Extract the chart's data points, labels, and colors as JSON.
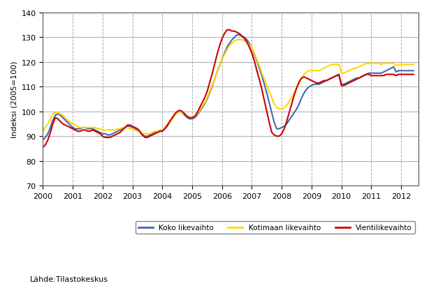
{
  "ylabel": "Indeksi (2005=100)",
  "source_text": "Lähde:Tilastokeskus",
  "ylim": [
    70,
    140
  ],
  "yticks": [
    70,
    80,
    90,
    100,
    110,
    120,
    130,
    140
  ],
  "xlim_start": 2000.0,
  "xlim_end": 2012.583,
  "xtick_labels": [
    "2000",
    "2001",
    "2002",
    "2003",
    "2004",
    "2005",
    "2006",
    "2007",
    "2008",
    "2009",
    "2010",
    "2011",
    "2012"
  ],
  "xtick_positions": [
    2000,
    2001,
    2002,
    2003,
    2004,
    2005,
    2006,
    2007,
    2008,
    2009,
    2010,
    2011,
    2012
  ],
  "color_koko": "#4169B0",
  "color_kotimaan": "#FFD700",
  "color_vienti": "#CC0000",
  "legend_labels": [
    "Koko likevaihto",
    "Kotimaan likevaihto",
    "Vientilikevaihto"
  ],
  "background_color": "#ffffff",
  "grid_color": "#aaaaaa",
  "koko": [
    88.5,
    89.5,
    91.0,
    93.5,
    96.5,
    98.5,
    99.0,
    98.5,
    97.5,
    96.5,
    95.5,
    94.5,
    93.5,
    93.0,
    93.0,
    93.0,
    93.5,
    93.5,
    93.0,
    93.0,
    93.0,
    92.5,
    92.0,
    91.5,
    91.0,
    91.0,
    90.5,
    90.5,
    91.0,
    91.5,
    92.0,
    92.5,
    93.0,
    93.5,
    94.0,
    94.0,
    93.5,
    93.0,
    92.5,
    91.5,
    90.5,
    90.0,
    90.0,
    90.5,
    91.0,
    91.5,
    91.5,
    92.0,
    92.0,
    93.0,
    94.0,
    95.5,
    97.0,
    98.5,
    99.5,
    100.0,
    99.5,
    98.5,
    97.5,
    97.0,
    97.0,
    97.5,
    98.5,
    100.0,
    101.5,
    103.0,
    105.0,
    107.5,
    110.0,
    113.0,
    116.0,
    118.5,
    121.0,
    123.5,
    126.0,
    127.5,
    129.0,
    130.0,
    131.0,
    131.0,
    130.5,
    130.0,
    129.0,
    127.5,
    125.5,
    123.0,
    120.5,
    117.5,
    114.5,
    111.0,
    107.5,
    103.5,
    99.5,
    95.5,
    93.0,
    93.0,
    93.5,
    94.0,
    95.0,
    96.5,
    98.0,
    99.5,
    101.0,
    103.0,
    105.5,
    107.5,
    109.0,
    110.0,
    110.5,
    111.0,
    111.0,
    111.0,
    111.5,
    112.0,
    112.5,
    113.0,
    113.5,
    114.0,
    114.5,
    114.5,
    111.0,
    111.0,
    111.5,
    112.0,
    112.5,
    113.0,
    113.5,
    113.5,
    114.0,
    114.5,
    115.0,
    115.5,
    115.5,
    115.5,
    115.5,
    115.5,
    115.5,
    116.0,
    116.5,
    117.0,
    117.5,
    118.0,
    116.0,
    116.5,
    116.5,
    116.5,
    116.5,
    116.5,
    116.5,
    116.5
  ],
  "kotimaan": [
    92.0,
    93.5,
    95.0,
    97.0,
    99.0,
    99.5,
    99.5,
    99.0,
    98.5,
    97.5,
    96.5,
    95.5,
    95.0,
    94.5,
    94.0,
    93.5,
    93.5,
    93.5,
    93.5,
    93.5,
    93.5,
    93.5,
    93.0,
    93.0,
    92.5,
    92.5,
    92.5,
    92.5,
    92.5,
    92.5,
    93.0,
    93.0,
    93.5,
    93.5,
    93.5,
    93.0,
    93.0,
    92.5,
    92.0,
    91.5,
    91.0,
    91.0,
    91.0,
    91.0,
    91.5,
    92.0,
    92.0,
    92.5,
    92.5,
    93.5,
    94.5,
    95.5,
    97.0,
    98.5,
    99.5,
    100.0,
    99.5,
    99.0,
    98.0,
    97.5,
    97.5,
    98.0,
    99.0,
    100.5,
    102.0,
    103.5,
    105.5,
    108.0,
    110.5,
    113.0,
    116.0,
    118.5,
    121.0,
    123.0,
    125.0,
    126.5,
    127.5,
    128.5,
    129.0,
    129.0,
    129.0,
    128.5,
    128.0,
    127.0,
    125.5,
    123.5,
    121.0,
    118.5,
    115.5,
    113.0,
    110.5,
    108.0,
    105.5,
    103.0,
    101.5,
    101.0,
    101.0,
    101.5,
    102.5,
    104.0,
    105.5,
    107.5,
    109.5,
    111.5,
    113.5,
    115.0,
    116.0,
    116.5,
    116.5,
    116.5,
    116.5,
    116.5,
    117.0,
    117.5,
    118.0,
    118.5,
    119.0,
    119.0,
    119.0,
    119.0,
    115.5,
    115.5,
    116.0,
    116.5,
    117.0,
    117.5,
    117.5,
    118.0,
    118.5,
    119.0,
    119.5,
    119.5,
    119.5,
    119.5,
    119.5,
    119.5,
    119.0,
    119.5,
    119.5,
    119.5,
    119.5,
    119.5,
    118.5,
    119.0,
    119.0,
    119.0,
    119.0,
    119.0,
    119.0,
    119.0
  ],
  "vienti": [
    85.5,
    86.5,
    88.5,
    91.5,
    95.0,
    97.5,
    97.0,
    96.0,
    95.0,
    94.5,
    94.0,
    93.5,
    93.0,
    92.5,
    92.0,
    92.0,
    92.5,
    92.5,
    92.0,
    92.0,
    92.5,
    92.0,
    91.5,
    91.0,
    90.0,
    89.5,
    89.5,
    89.5,
    90.0,
    90.5,
    91.0,
    91.5,
    92.5,
    93.5,
    94.5,
    94.5,
    94.0,
    93.5,
    93.0,
    92.0,
    90.5,
    89.5,
    89.5,
    90.0,
    90.5,
    91.0,
    91.5,
    92.0,
    92.0,
    93.0,
    94.5,
    96.0,
    97.5,
    99.0,
    100.0,
    100.5,
    100.0,
    99.0,
    98.0,
    97.5,
    97.5,
    98.0,
    99.5,
    101.5,
    103.5,
    105.5,
    108.0,
    111.5,
    115.0,
    119.0,
    123.0,
    126.5,
    129.5,
    131.5,
    133.0,
    133.0,
    132.5,
    132.5,
    132.0,
    131.5,
    130.5,
    129.5,
    128.0,
    126.0,
    123.5,
    120.5,
    116.5,
    113.0,
    109.0,
    104.5,
    100.0,
    95.5,
    91.5,
    90.5,
    90.0,
    90.0,
    91.0,
    93.0,
    96.0,
    99.5,
    103.0,
    106.5,
    109.5,
    112.0,
    113.5,
    114.0,
    113.5,
    113.0,
    112.5,
    112.0,
    111.5,
    111.5,
    112.0,
    112.5,
    112.5,
    113.0,
    113.5,
    114.0,
    114.5,
    115.0,
    110.5,
    110.5,
    111.0,
    111.5,
    112.0,
    112.5,
    113.0,
    113.5,
    114.0,
    114.5,
    115.0,
    115.0,
    114.5,
    114.5,
    114.5,
    114.5,
    114.5,
    114.5,
    115.0,
    115.0,
    115.0,
    115.0,
    114.5,
    115.0,
    115.0,
    115.0,
    115.0,
    115.0,
    115.0,
    115.0
  ]
}
